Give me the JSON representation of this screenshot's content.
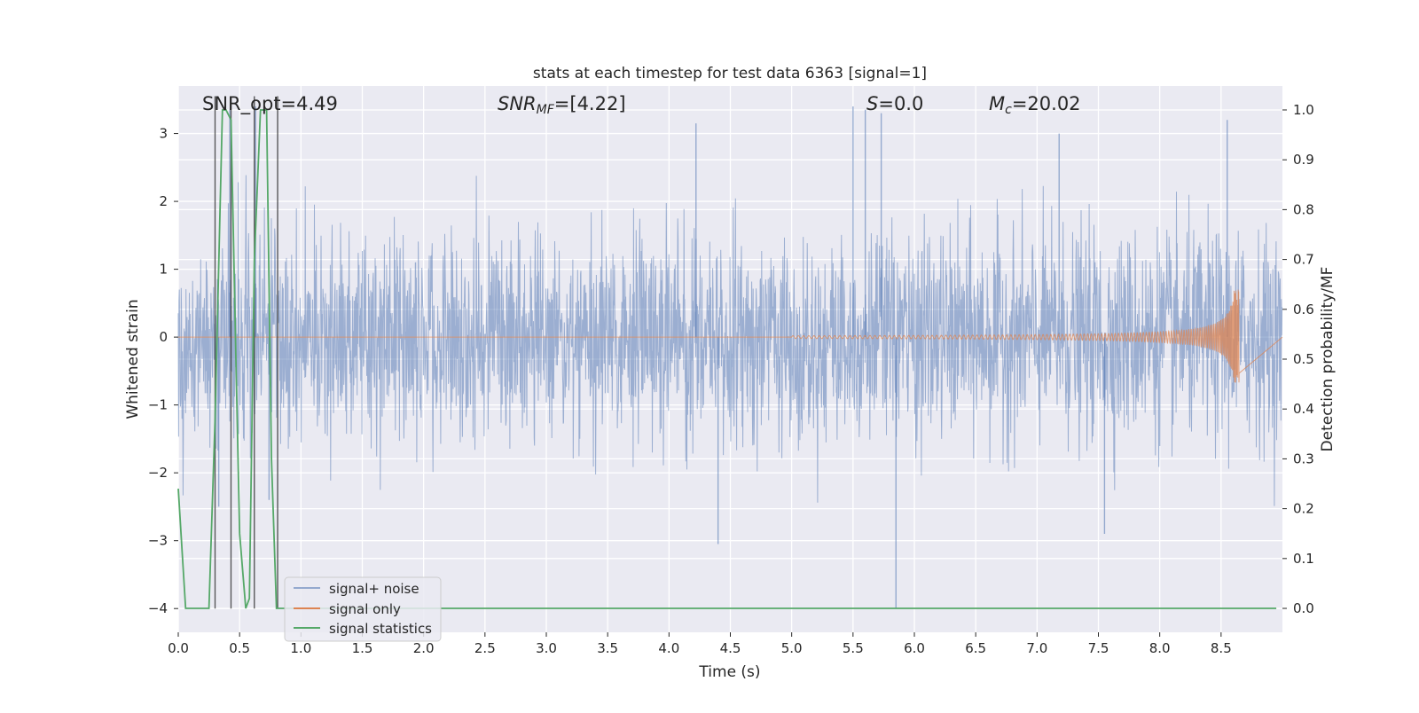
{
  "chart_data": {
    "type": "line",
    "title": "stats at each timestep for test data 6363 [signal=1]",
    "xlabel": "Time (s)",
    "ylabel": "Whitened strain",
    "y2label": "Detection probability/MF",
    "xlim": [
      0.0,
      9.0
    ],
    "ylim": [
      -4.35,
      3.7
    ],
    "y2lim": [
      -0.048,
      1.048
    ],
    "x_ticks": [
      "0.0",
      "0.5",
      "1.0",
      "1.5",
      "2.0",
      "2.5",
      "3.0",
      "3.5",
      "4.0",
      "4.5",
      "5.0",
      "5.5",
      "6.0",
      "6.5",
      "7.0",
      "7.5",
      "8.0",
      "8.5"
    ],
    "y_ticks": [
      "3",
      "2",
      "1",
      "0",
      "−1",
      "−2",
      "−3",
      "−4"
    ],
    "y2_ticks": [
      "1.0",
      "0.9",
      "0.8",
      "0.7",
      "0.6",
      "0.5",
      "0.4",
      "0.3",
      "0.2",
      "0.1",
      "0.0"
    ],
    "grid": true,
    "legend_position": "lower-left",
    "colors": {
      "background": "#eaeaf2",
      "grid": "#ffffff",
      "signal_noise": "#4c72b0",
      "signal_only": "#dd8452",
      "signal_statistics": "#55a868",
      "marker_lines": "#333333"
    },
    "annotations": [
      {
        "text": "SNR_opt=4.49"
      },
      {
        "text": "SNR",
        "sub": "MF",
        "rest": "=[4.22]"
      },
      {
        "text": "S",
        "rest": "=0.0"
      },
      {
        "text": "M",
        "sub": "c",
        "rest": "=20.02"
      }
    ],
    "series": [
      {
        "name": "signal+ noise",
        "noise_sigma": 0.75,
        "sample_spacing": 0.003,
        "peaks": [
          [
            0.33,
            -2.5
          ],
          [
            0.42,
            3.35
          ],
          [
            0.63,
            3.4
          ],
          [
            0.74,
            -2.4
          ],
          [
            4.22,
            3.15
          ],
          [
            4.4,
            -3.05
          ],
          [
            5.5,
            3.4
          ],
          [
            5.6,
            3.35
          ],
          [
            5.73,
            3.3
          ],
          [
            5.85,
            -4.0
          ],
          [
            7.18,
            3.0
          ],
          [
            8.55,
            3.2
          ],
          [
            7.55,
            -2.9
          ]
        ]
      },
      {
        "name": "signal only",
        "chirp": {
          "start": 5.0,
          "end": 8.65,
          "max_amplitude": 0.7,
          "min_amplitude": 0.02
        }
      },
      {
        "name": "signal statistics",
        "axis": "right",
        "x": [
          0.0,
          0.06,
          0.25,
          0.3,
          0.36,
          0.39,
          0.43,
          0.47,
          0.5,
          0.55,
          0.58,
          0.62,
          0.67,
          0.72,
          0.76,
          0.8,
          0.84,
          8.95
        ],
        "y": [
          0.24,
          0.0,
          0.0,
          0.38,
          1.0,
          1.0,
          0.98,
          0.5,
          0.15,
          0.0,
          0.02,
          0.7,
          1.0,
          1.0,
          0.3,
          0.0,
          0.0,
          0.0
        ]
      }
    ],
    "marker_lines_x": [
      0.3,
      0.43,
      0.62,
      0.81
    ]
  }
}
